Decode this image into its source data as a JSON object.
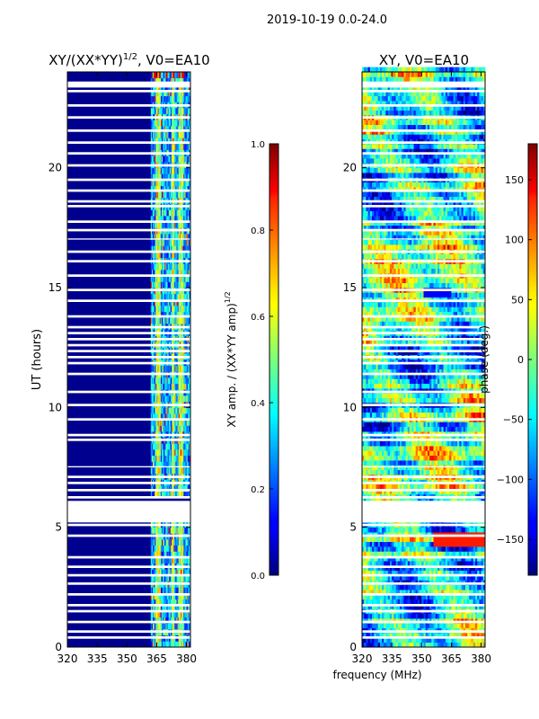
{
  "figure": {
    "suptitle": "2019-10-19 0.0-24.0",
    "shared_xlabel": "frequency (MHz)"
  },
  "chart_data": [
    {
      "type": "heatmap",
      "title": "XY/(XX*YY)",
      "title_sup": "1/2",
      "title_suffix": ", V0=EA10",
      "xlabel": "",
      "ylabel": "UT (hours)",
      "xlim": [
        320,
        382
      ],
      "ylim": [
        0,
        24
      ],
      "xticks": [
        320,
        335,
        350,
        365,
        380
      ],
      "yticks": [
        0,
        5,
        10,
        15,
        20
      ],
      "dense_freq_range": [
        362,
        382
      ],
      "colorbar": {
        "label": "XY amp. / (XX*YY amp)",
        "label_sup": "1/2",
        "range": [
          0.0,
          1.0
        ],
        "ticks": [
          "0.0",
          "0.2",
          "0.4",
          "0.6",
          "0.8",
          "1.0"
        ],
        "colormap": "jet"
      }
    },
    {
      "type": "heatmap",
      "title": "XY, V0=EA10",
      "xlabel": "frequency (MHz)",
      "ylabel": "",
      "xlim": [
        320,
        382
      ],
      "ylim": [
        0,
        24
      ],
      "xticks": [
        320,
        335,
        350,
        365,
        380
      ],
      "yticks": [
        0,
        5,
        10,
        15,
        20
      ],
      "colorbar": {
        "label": "phase (deg.)",
        "range": [
          -180,
          180
        ],
        "ticks": [
          "150",
          "100",
          "50",
          "0",
          "−50",
          "−100",
          "−150"
        ],
        "tick_values": [
          150,
          100,
          50,
          0,
          -50,
          -100,
          -150
        ],
        "colormap": "jet"
      }
    }
  ],
  "data_gaps_ut_hours": [
    [
      0.35,
      0.45
    ],
    [
      0.6,
      0.7
    ],
    [
      1.0,
      1.1
    ],
    [
      1.45,
      1.55
    ],
    [
      1.7,
      1.8
    ],
    [
      2.15,
      2.25
    ],
    [
      2.6,
      2.7
    ],
    [
      2.95,
      3.05
    ],
    [
      3.3,
      3.4
    ],
    [
      3.7,
      3.8
    ],
    [
      4.6,
      4.7
    ],
    [
      5.05,
      5.15
    ],
    [
      5.2,
      6.1
    ],
    [
      6.2,
      6.3
    ],
    [
      6.5,
      6.6
    ],
    [
      6.8,
      6.9
    ],
    [
      7.05,
      7.15
    ],
    [
      7.5,
      7.55
    ],
    [
      8.6,
      8.7
    ],
    [
      8.8,
      8.9
    ],
    [
      9.45,
      9.55
    ],
    [
      10.05,
      10.15
    ],
    [
      10.6,
      10.7
    ],
    [
      11.35,
      11.45
    ],
    [
      11.8,
      11.9
    ],
    [
      12.05,
      12.15
    ],
    [
      12.3,
      12.4
    ],
    [
      12.55,
      12.65
    ],
    [
      12.8,
      12.9
    ],
    [
      13.05,
      13.15
    ],
    [
      13.3,
      13.4
    ],
    [
      13.75,
      13.85
    ],
    [
      14.4,
      14.5
    ],
    [
      14.85,
      14.95
    ],
    [
      15.45,
      15.55
    ],
    [
      16.05,
      16.15
    ],
    [
      16.45,
      16.55
    ],
    [
      17.0,
      17.05
    ],
    [
      17.35,
      17.45
    ],
    [
      17.7,
      17.8
    ],
    [
      18.35,
      18.45
    ],
    [
      18.55,
      18.65
    ],
    [
      19.0,
      19.1
    ],
    [
      19.45,
      19.55
    ],
    [
      20.05,
      20.15
    ],
    [
      20.55,
      20.65
    ],
    [
      21.0,
      21.1
    ],
    [
      21.5,
      21.6
    ],
    [
      22.05,
      22.15
    ],
    [
      22.55,
      22.65
    ],
    [
      23.15,
      23.25
    ],
    [
      23.35,
      23.6
    ]
  ]
}
